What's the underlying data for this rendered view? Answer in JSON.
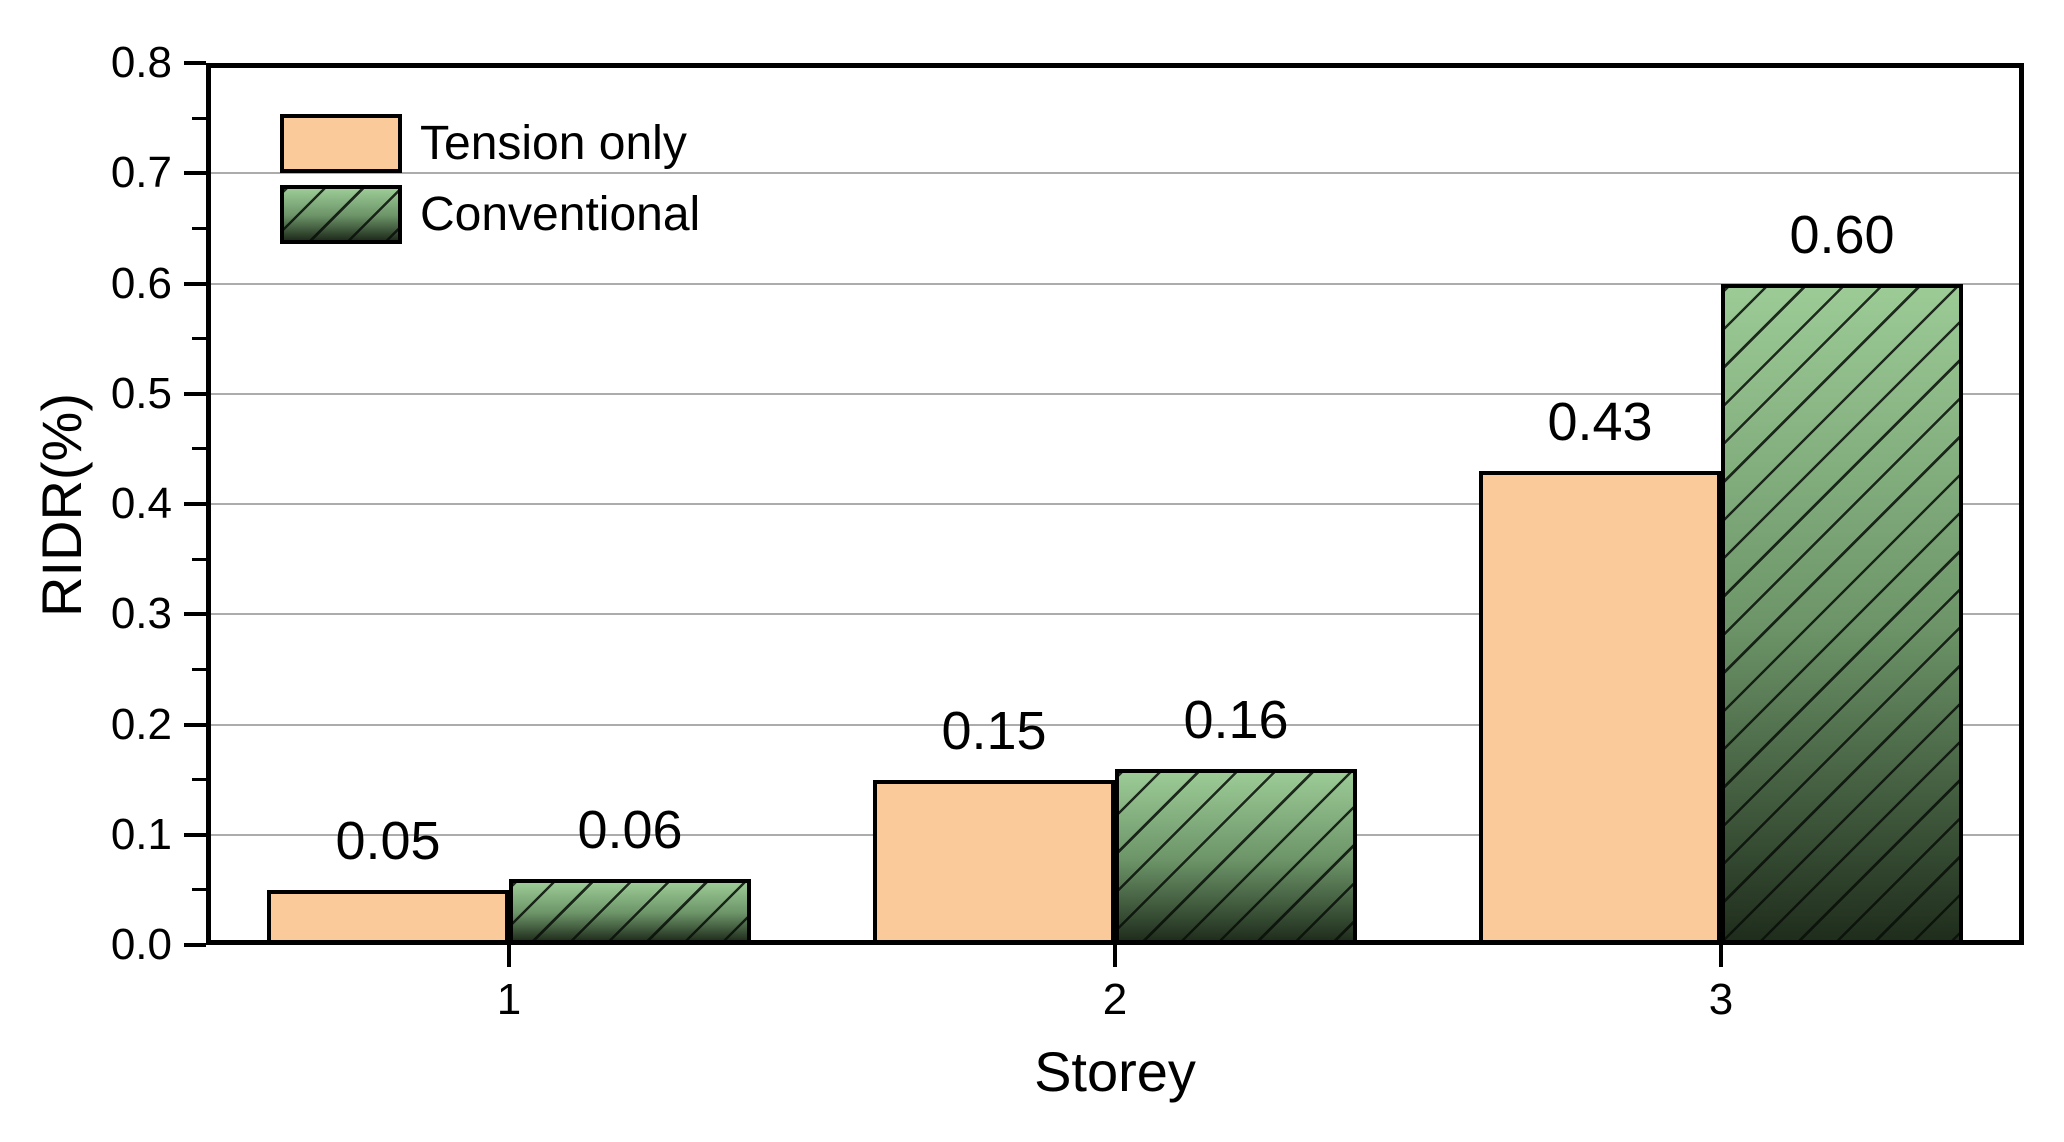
{
  "chart_data": {
    "type": "bar",
    "title": "",
    "xlabel": "Storey",
    "ylabel": "RIDR(%)",
    "categories": [
      "1",
      "2",
      "3"
    ],
    "series": [
      {
        "name": "Tension only",
        "style": "solid-orange",
        "values": [
          0.05,
          0.15,
          0.43
        ],
        "labels": [
          "0.05",
          "0.15",
          "0.43"
        ]
      },
      {
        "name": "Conventional",
        "style": "hatched-green-gradient",
        "values": [
          0.06,
          0.16,
          0.6
        ],
        "labels": [
          "0.06",
          "0.16",
          "0.60"
        ]
      }
    ],
    "ylim": [
      0.0,
      0.8
    ],
    "ytick_values": [
      0.0,
      0.1,
      0.2,
      0.3,
      0.4,
      0.5,
      0.6,
      0.7,
      0.8
    ],
    "ytick_labels": [
      "0.0",
      "0.1",
      "0.2",
      "0.3",
      "0.4",
      "0.5",
      "0.6",
      "0.7",
      "0.8"
    ],
    "minor_ytick_values": [
      0.05,
      0.15,
      0.25,
      0.35,
      0.45,
      0.55,
      0.65,
      0.75
    ],
    "grid": "horizontal-major",
    "bar_width_fraction_of_category": 0.4,
    "legend_position": "top-left-inside",
    "colors": {
      "background": "#FFFFFF",
      "axis": "#000000",
      "gridline": "#ACACAC",
      "bar_orange": "#FACA9A",
      "bar_green_top": "#9CCB96",
      "bar_green_mid": "#6C9468",
      "bar_green_bottom": "#1F2D1C"
    }
  }
}
